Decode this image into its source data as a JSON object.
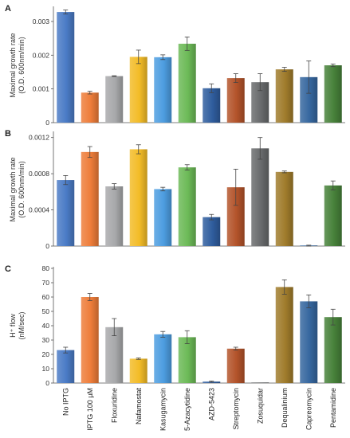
{
  "categories": [
    "No IPTG",
    "IPTG 100 µM",
    "Floxuridine",
    "Nafamostat",
    "Kasugamycin",
    "5-Azacytidine",
    "AZD-5423",
    "Streptomycin",
    "Zosuquidar",
    "Dequalinium",
    "Capreomycin",
    "Pentamidine"
  ],
  "colors": {
    "bars": [
      "#4a7bc6",
      "#ee7d3a",
      "#a8a9ab",
      "#f3bc27",
      "#4d9de0",
      "#6cba57",
      "#2f5d9e",
      "#b3532a",
      "#686a6c",
      "#a07c2c",
      "#36679f",
      "#47813a"
    ],
    "axis": "#555555",
    "error_bar": "#444444"
  },
  "chart_data": [
    {
      "type": "bar",
      "panel": "A",
      "ylabel": [
        "Maximal growth rate",
        "(O.D. 600nm/min)"
      ],
      "ylim": [
        0,
        0.0034
      ],
      "yticks": [
        "0",
        "0.001",
        "0.002",
        "0.003"
      ],
      "ytick_values": [
        0,
        0.001,
        0.002,
        0.003
      ],
      "values": [
        0.00328,
        0.00089,
        0.00138,
        0.00195,
        0.00194,
        0.00234,
        0.00102,
        0.00132,
        0.0012,
        0.00158,
        0.00135,
        0.0017
      ],
      "errors": [
        6e-05,
        4e-05,
        1e-05,
        0.0002,
        7e-05,
        0.0002,
        0.00013,
        0.00013,
        0.00025,
        6e-05,
        0.00048,
        4e-05
      ]
    },
    {
      "type": "bar",
      "panel": "B",
      "ylabel": [
        "Maximal growth rate",
        "(O.D. 600nm/min)"
      ],
      "ylim": [
        0,
        0.00125
      ],
      "yticks": [
        "0",
        "0.0004",
        "0.0008",
        "0.0012"
      ],
      "ytick_values": [
        0,
        0.0004,
        0.0008,
        0.0012
      ],
      "values": [
        0.00073,
        0.00104,
        0.00066,
        0.00107,
        0.00063,
        0.00087,
        0.00032,
        0.00065,
        0.00108,
        0.00082,
        0.0,
        0.00067
      ],
      "errors": [
        5e-05,
        6e-05,
        3e-05,
        5e-05,
        2e-05,
        3e-05,
        3e-05,
        0.0002,
        0.00012,
        1e-05,
        1e-05,
        5e-05
      ]
    },
    {
      "type": "bar",
      "panel": "C",
      "ylabel": [
        "H⁺ flow",
        "(nM/sec)"
      ],
      "ylim": [
        0,
        80
      ],
      "yticks": [
        "0",
        "10",
        "20",
        "30",
        "40",
        "50",
        "60",
        "70",
        "80"
      ],
      "ytick_values": [
        0,
        10,
        20,
        30,
        40,
        50,
        60,
        70,
        80
      ],
      "values": [
        23,
        60,
        39,
        17,
        34,
        32,
        1,
        24,
        0,
        67,
        57,
        46
      ],
      "errors": [
        2,
        2.5,
        6,
        0.5,
        2,
        4.5,
        0.4,
        1,
        0,
        5,
        4.5,
        5.5
      ]
    }
  ]
}
